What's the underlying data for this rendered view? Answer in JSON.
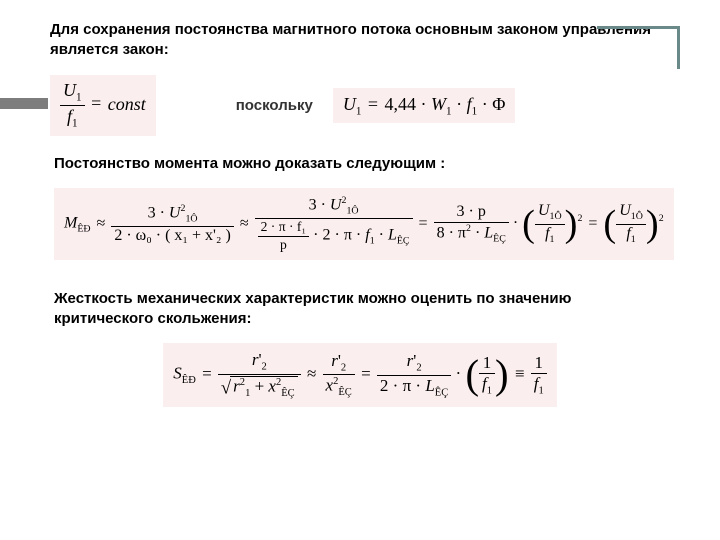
{
  "heading1": "Для сохранения постоянства магнитного потока основным законом управления является закон:",
  "connector": "поскольку",
  "formula1": {
    "lhs_num": "U",
    "lhs_num_sub": "1",
    "lhs_den": "f",
    "lhs_den_sub": "1",
    "rhs": "const"
  },
  "formula2": "U₁ = 4,44 · W₁ · f₁ · Φ",
  "heading2": "Постоянство момента можно доказать следующим :",
  "formula3": {
    "M_sub": "ÊÐ",
    "t1_den": "2 · ω₀ · ( x₁ + x'₂ )",
    "t2a_num": "3 · U²₁Ô",
    "t2a_den_num": "2 · π · f₁",
    "t2a_den_den": "p",
    "t2b_den": "2 · π · f₁ · L_ÊÇ",
    "t3_num": "3 · p",
    "t3_den": "8 · π² · L_ÊÇ",
    "t3_inner_num": "U₁Ô",
    "t3_inner_den": "f₁"
  },
  "heading3": "Жесткость механических характеристик можно оценить по значению критического скольжения:",
  "formula4": {
    "S_sub": "ÊÐ",
    "r2p": "r'₂",
    "den1a": "r²₁",
    "den1b": "x²_ÊÇ",
    "den2": "x²_ÊÇ",
    "den3": "2 · π · L_ÊÇ",
    "inner_num": "1",
    "inner_den": "f₁",
    "rhs_num": "1",
    "rhs_den": "f₁"
  },
  "colors": {
    "formula_bg": "#fbeeee",
    "bracket": "#6a8a8a",
    "bar": "#7d7d7d",
    "text": "#000000"
  }
}
